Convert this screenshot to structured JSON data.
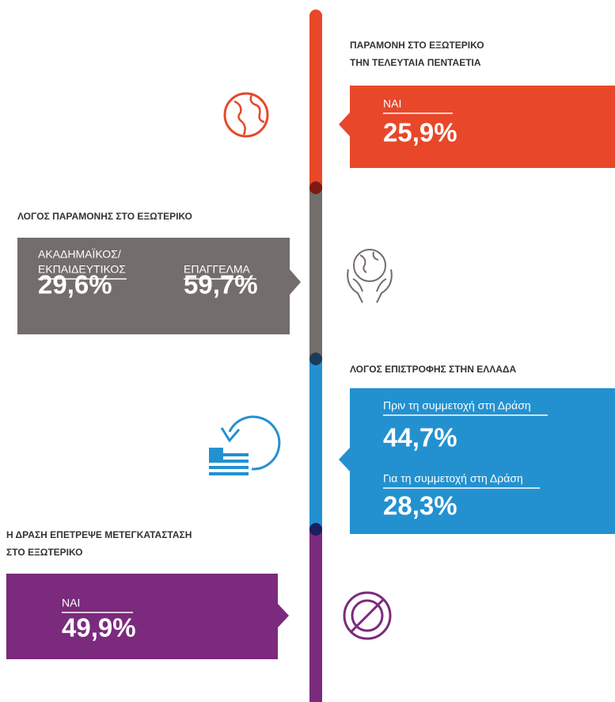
{
  "sections": [
    {
      "title_lines": [
        "ΠΑΡΑΜΟΝΗ ΣΤΟ ΕΞΩΤΕΡΙΚΟ",
        "ΤΗΝ ΤΕΛΕΥΤΑΙΑ  ΠΕΝΤΑΕΤΙΑ"
      ],
      "items": [
        {
          "label_lines": [
            "ΝΑΙ"
          ],
          "value": "25,9%"
        }
      ]
    },
    {
      "title_lines": [
        "ΛΟΓΟΣ ΠΑΡΑΜΟΝΗΣ ΣΤΟ ΕΞΩΤΕΡΙΚΟ"
      ],
      "items": [
        {
          "label_lines": [
            "ΑΚΑΔΗΜΑΪΚΟΣ/",
            "ΕΚΠΑΙΔΕΥΤΙΚΟΣ"
          ],
          "value": "29,6%"
        },
        {
          "label_lines": [
            "ΕΠΑΓΓΕΛΜΑ"
          ],
          "value": "59,7%"
        }
      ]
    },
    {
      "title_lines": [
        "ΛΟΓΟΣ ΕΠΙΣΤΡΟΦΗΣ ΣΤΗΝ ΕΛΛΑΔΑ"
      ],
      "items": [
        {
          "label_lines": [
            "Πριν τη συμμετοχή στη Δράση"
          ],
          "value": "44,7%"
        },
        {
          "label_lines": [
            "Για τη συμμετοχή στη Δράση"
          ],
          "value": "28,3%"
        }
      ]
    },
    {
      "title_lines": [
        "Η ΔΡΑΣΗ ΕΠΕΤΡΕΨΕ ΜΕΤΕΓΚΑΤΑΣΤΑΣΗ",
        "ΣΤΟ ΕΞΩΤΕΡΙΚΟ"
      ],
      "items": [
        {
          "label_lines": [
            "ΝΑΙ"
          ],
          "value": "49,9%"
        }
      ]
    }
  ]
}
